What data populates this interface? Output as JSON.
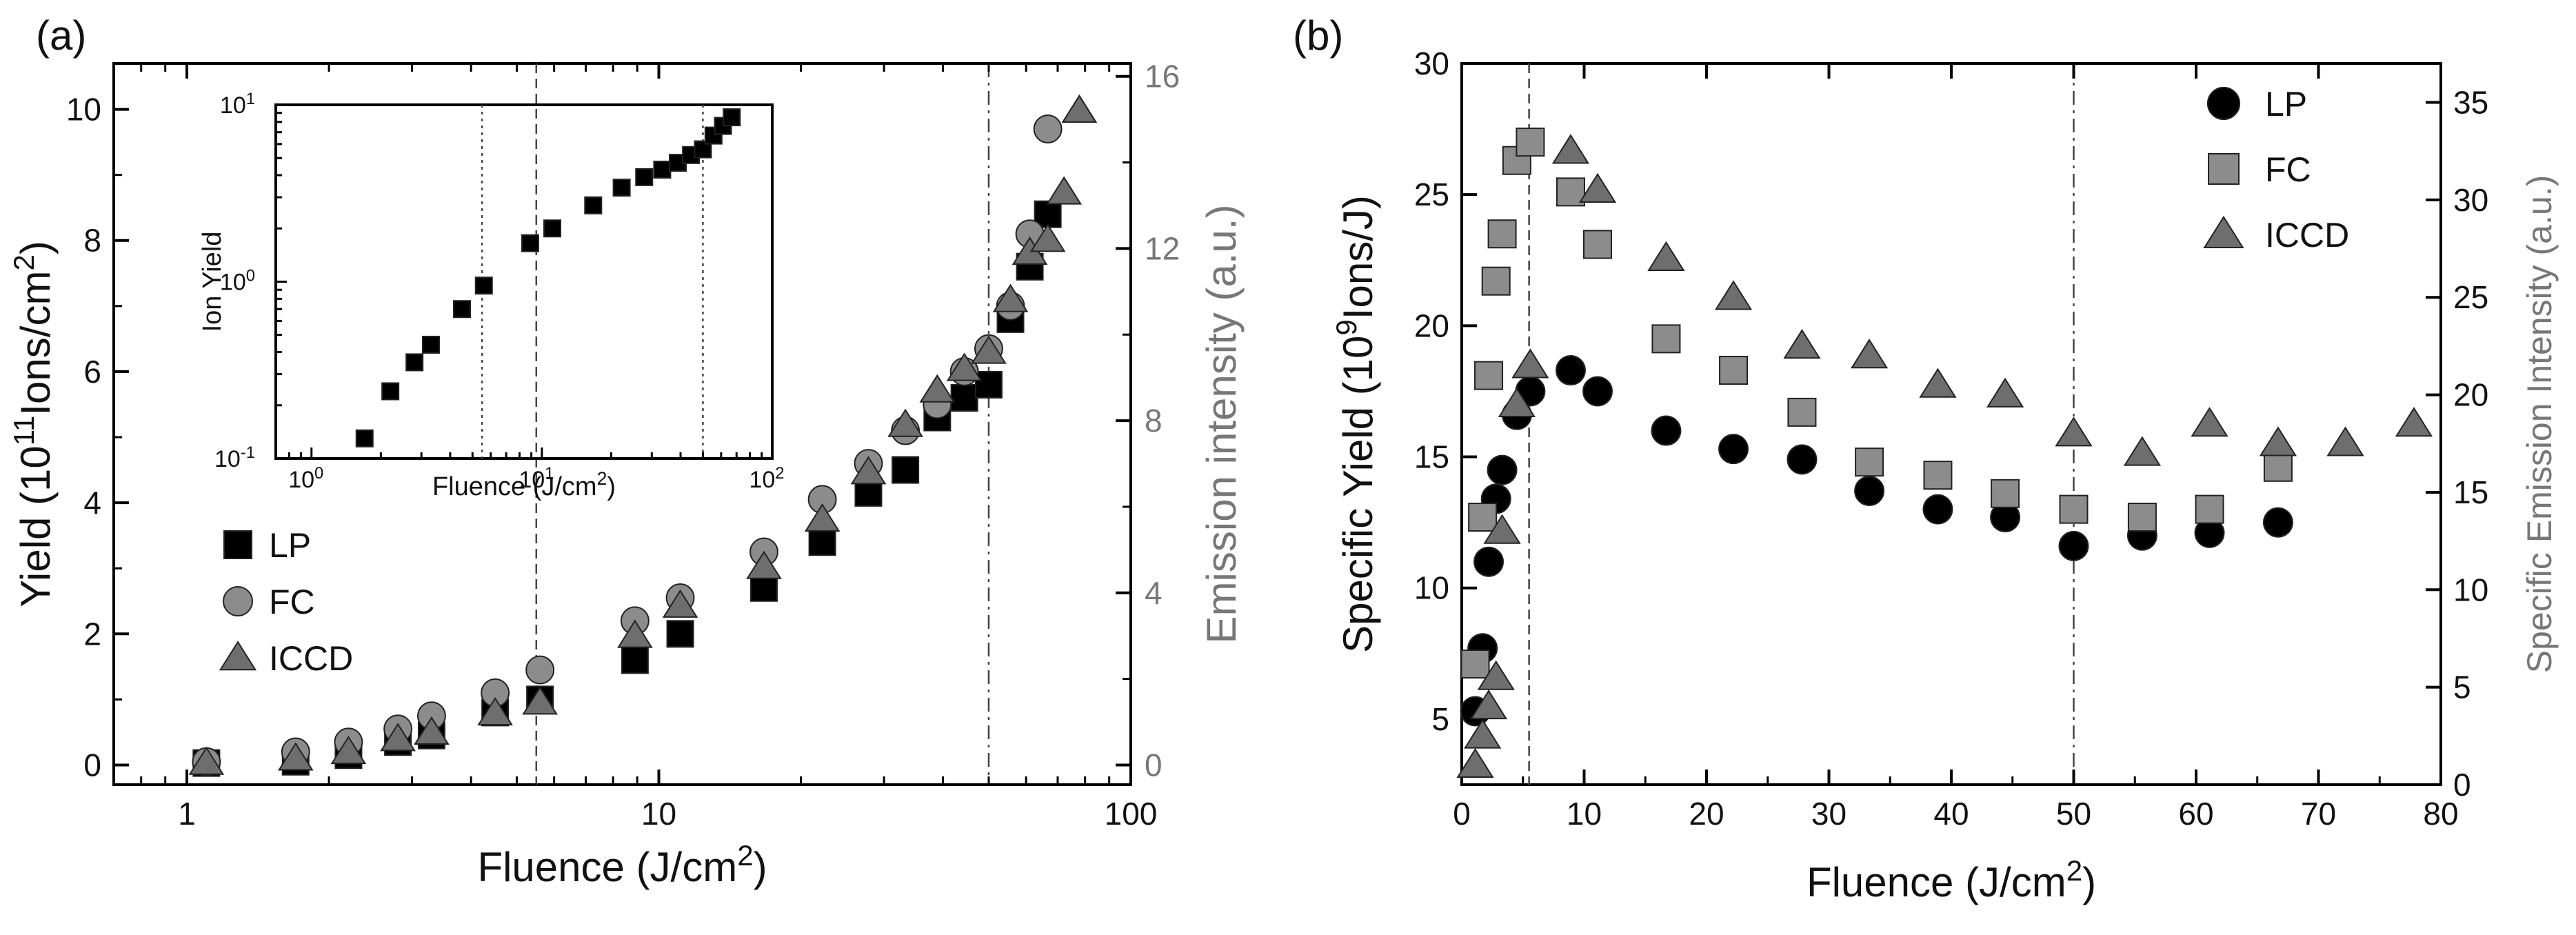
{
  "chart_data": [
    {
      "panel_label": "(a)",
      "type": "scatter",
      "xscale": "log",
      "xlim": [
        0.7,
        100
      ],
      "xticks": [
        1,
        10,
        100
      ],
      "xtick_labels": [
        "1",
        "10",
        "100"
      ],
      "xlabel": "Fluence (J/cm²)",
      "ylabel": "Yield (10¹¹Ions/cm²)",
      "ylim": [
        -0.3,
        10.7
      ],
      "yticks": [
        0,
        2,
        4,
        6,
        8,
        10
      ],
      "ytick_labels": [
        "0",
        "2",
        "4",
        "6",
        "8",
        "10"
      ],
      "y2label": "Emission intensity (a.u.)",
      "y2lim": [
        -0.457,
        16.3
      ],
      "y2ticks": [
        0,
        4,
        8,
        12,
        16
      ],
      "y2tick_labels": [
        "0",
        "4",
        "8",
        "12",
        "16"
      ],
      "vlines": [
        {
          "x": 5.5,
          "style": "dashed"
        },
        {
          "x": 50,
          "style": "dashdot"
        }
      ],
      "legend": {
        "position": "lower-left",
        "entries": [
          "LP",
          "FC",
          "ICCD"
        ]
      },
      "series": [
        {
          "name": "LP",
          "marker": "square",
          "color": "#000000",
          "axis": "left",
          "x": [
            1.1,
            1.7,
            2.2,
            2.8,
            3.3,
            4.5,
            5.6,
            8.9,
            11.1,
            16.7,
            22.2,
            27.8,
            33.3,
            38.9,
            44.4,
            50,
            55.6,
            61.1,
            66.7
          ],
          "y": [
            0.03,
            0.05,
            0.15,
            0.35,
            0.45,
            0.8,
            1.0,
            1.6,
            2.0,
            2.7,
            3.4,
            4.15,
            4.5,
            5.3,
            5.6,
            5.8,
            6.8,
            7.6,
            8.4
          ]
        },
        {
          "name": "FC",
          "marker": "circle",
          "color": "#8c8c8c",
          "axis": "left",
          "x": [
            1.1,
            1.7,
            2.2,
            2.8,
            3.3,
            4.5,
            5.6,
            8.9,
            11.1,
            16.7,
            22.2,
            27.8,
            33.3,
            38.9,
            44.4,
            50,
            55.6,
            61.1,
            66.7
          ],
          "y": [
            0.05,
            0.2,
            0.35,
            0.55,
            0.75,
            1.1,
            1.45,
            2.2,
            2.55,
            3.25,
            4.05,
            4.6,
            5.1,
            5.5,
            6.0,
            6.35,
            7.0,
            8.1,
            9.7
          ]
        },
        {
          "name": "ICCD",
          "marker": "triangle",
          "color": "#6e6e6e",
          "axis": "right",
          "x": [
            1.1,
            1.7,
            2.2,
            2.8,
            3.3,
            4.5,
            5.6,
            8.9,
            11.1,
            16.7,
            22.2,
            27.8,
            33.3,
            38.9,
            44.4,
            50,
            55.6,
            61.1,
            66.7,
            72.2,
            77.8
          ],
          "y": [
            0.05,
            0.15,
            0.3,
            0.6,
            0.75,
            1.2,
            1.45,
            3.0,
            3.7,
            4.6,
            5.7,
            6.8,
            7.9,
            8.7,
            9.2,
            9.6,
            10.8,
            11.9,
            12.2,
            13.3,
            15.2
          ]
        }
      ],
      "inset": {
        "type": "scatter",
        "xscale": "log",
        "yscale": "log",
        "xlim": [
          0.7,
          100
        ],
        "ylim": [
          0.1,
          10
        ],
        "xticks": [
          1,
          10,
          100
        ],
        "xtick_labels": [
          "10",
          "10",
          "10"
        ],
        "xtick_exponents": [
          "0",
          "1",
          "2"
        ],
        "yticks": [
          0.1,
          1,
          10
        ],
        "ytick_labels": [
          "10",
          "10",
          "10"
        ],
        "ytick_exponents": [
          "-1",
          "0",
          "1"
        ],
        "xlabel": "Fluence (J/cm²)",
        "ylabel": "Ion Yield",
        "vlines": [
          {
            "x": 5.5,
            "style": "dotted"
          },
          {
            "x": 50,
            "style": "dotted"
          }
        ],
        "series": [
          {
            "name": "Ion Yield",
            "marker": "square",
            "color": "#000000",
            "x": [
              1.7,
              2.2,
              2.8,
              3.3,
              4.5,
              5.6,
              8.9,
              11.1,
              16.7,
              22.2,
              27.8,
              33.3,
              38.9,
              44.4,
              50,
              55.6,
              61.1,
              66.7
            ],
            "y": [
              0.13,
              0.24,
              0.35,
              0.44,
              0.7,
              0.95,
              1.65,
              2.0,
              2.7,
              3.4,
              3.9,
              4.3,
              4.7,
              5.2,
              5.6,
              6.7,
              7.6,
              8.5
            ]
          }
        ]
      }
    },
    {
      "panel_label": "(b)",
      "type": "scatter",
      "xscale": "linear",
      "xlim": [
        0,
        80
      ],
      "xticks": [
        0,
        10,
        20,
        30,
        40,
        50,
        60,
        70,
        80
      ],
      "xtick_labels": [
        "0",
        "10",
        "20",
        "30",
        "40",
        "50",
        "60",
        "70",
        "80"
      ],
      "xlabel": "Fluence (J/cm²)",
      "ylabel": "Specific Yield (10⁹Ions/J)",
      "ylim": [
        2.5,
        30
      ],
      "yticks": [
        5,
        10,
        15,
        20,
        25,
        30
      ],
      "ytick_labels": [
        "5",
        "10",
        "15",
        "20",
        "25",
        "30"
      ],
      "y2label": "Specific Emission Intensity (a.u.)",
      "y2lim": [
        0,
        37
      ],
      "y2ticks": [
        0,
        5,
        10,
        15,
        20,
        25,
        30,
        35
      ],
      "y2tick_labels": [
        "0",
        "5",
        "10",
        "15",
        "20",
        "25",
        "30",
        "35"
      ],
      "vlines": [
        {
          "x": 5.5,
          "style": "dashed"
        },
        {
          "x": 50,
          "style": "dashdot"
        }
      ],
      "legend": {
        "position": "top-right",
        "entries": [
          "LP",
          "FC",
          "ICCD"
        ]
      },
      "series": [
        {
          "name": "LP",
          "marker": "circle",
          "color": "#000000",
          "axis": "left",
          "x": [
            1.1,
            1.7,
            2.2,
            2.8,
            3.3,
            4.5,
            5.6,
            8.9,
            11.1,
            16.7,
            22.2,
            27.8,
            33.3,
            38.9,
            44.4,
            50,
            55.6,
            61.1,
            66.7
          ],
          "y": [
            5.3,
            7.7,
            11.0,
            13.4,
            14.5,
            16.6,
            17.5,
            18.3,
            17.5,
            16.0,
            15.3,
            14.9,
            13.7,
            13.0,
            12.7,
            11.6,
            12.0,
            12.1,
            12.5
          ]
        },
        {
          "name": "FC",
          "marker": "square",
          "color": "#8c8c8c",
          "axis": "left",
          "x": [
            1.1,
            1.7,
            2.2,
            2.8,
            3.3,
            4.5,
            5.6,
            8.9,
            11.1,
            16.7,
            22.2,
            27.8,
            33.3,
            38.9,
            44.4,
            50,
            55.6,
            61.1,
            66.7
          ],
          "y": [
            7.1,
            12.7,
            18.1,
            21.7,
            23.5,
            26.3,
            27.0,
            25.1,
            23.1,
            19.5,
            18.3,
            16.7,
            14.8,
            14.3,
            13.6,
            13.0,
            12.7,
            13.0,
            14.6
          ]
        },
        {
          "name": "ICCD",
          "marker": "triangle",
          "color": "#6e6e6e",
          "axis": "right",
          "x": [
            1.1,
            1.7,
            2.2,
            2.8,
            3.3,
            4.5,
            5.6,
            8.9,
            11.1,
            16.7,
            22.2,
            27.8,
            33.3,
            38.9,
            44.4,
            50,
            55.6,
            61.1,
            66.7,
            72.2,
            77.8
          ],
          "y": [
            1.0,
            2.5,
            4.0,
            5.5,
            13.0,
            19.5,
            21.5,
            32.5,
            30.5,
            27.0,
            25.0,
            22.5,
            22.0,
            20.5,
            20.0,
            18.0,
            17.0,
            18.5,
            17.5,
            17.5,
            18.5
          ]
        }
      ]
    }
  ]
}
